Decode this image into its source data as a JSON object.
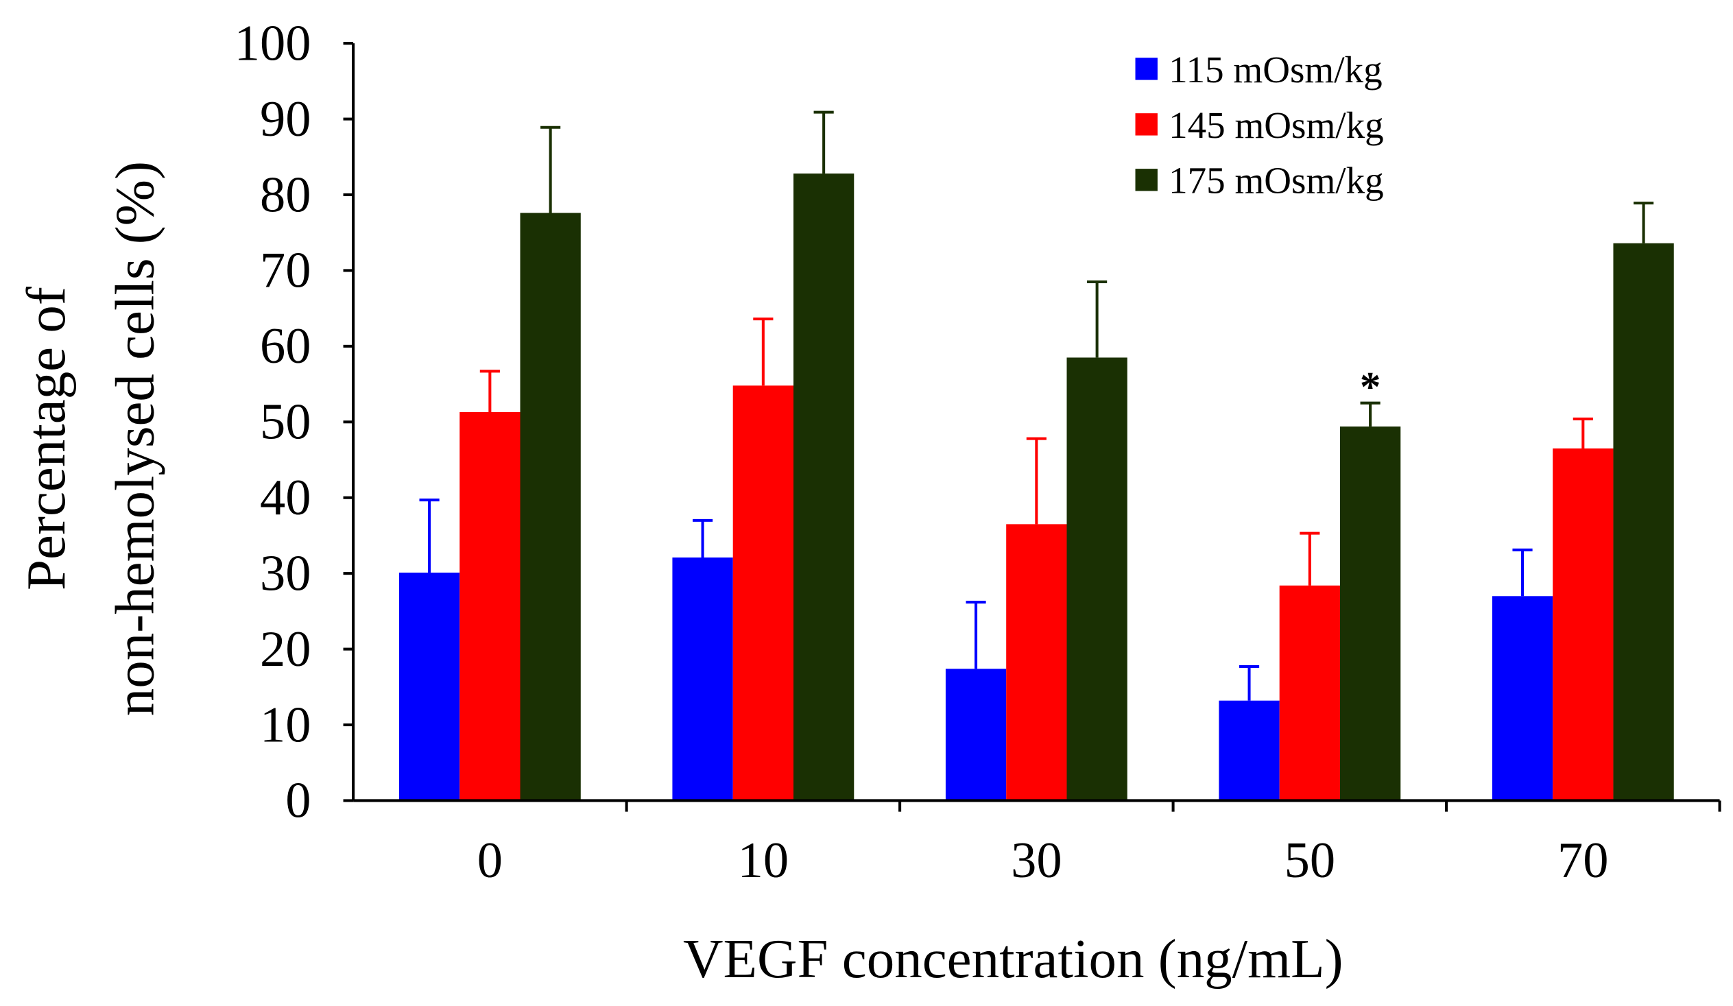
{
  "chart_data": {
    "type": "bar",
    "title": "",
    "xlabel": "VEGF concentration (ng/mL)",
    "ylabel_lines": [
      "Percentage of",
      "non-hemolysed cells (%)"
    ],
    "ylim": [
      0,
      100
    ],
    "yticks": [
      0,
      10,
      20,
      30,
      40,
      50,
      60,
      70,
      80,
      90,
      100
    ],
    "categories": [
      "0",
      "10",
      "30",
      "50",
      "70"
    ],
    "legend_position": "top-right",
    "series": [
      {
        "name": "115 mOsm/kg",
        "color": "#0000ff",
        "values": [
          30.1,
          32.1,
          17.4,
          13.2,
          27.0
        ],
        "error": [
          9.6,
          4.9,
          8.8,
          4.5,
          6.1
        ]
      },
      {
        "name": "145 mOsm/kg",
        "color": "#ff0000",
        "values": [
          51.3,
          54.8,
          36.5,
          28.4,
          46.5
        ],
        "error": [
          5.4,
          8.8,
          11.3,
          6.9,
          3.9
        ]
      },
      {
        "name": "175 mOsm/kg",
        "color": "#1a3003",
        "values": [
          77.6,
          82.8,
          58.5,
          49.4,
          73.6
        ],
        "error": [
          11.3,
          8.1,
          10.0,
          3.1,
          5.3
        ]
      }
    ],
    "annotations": [
      {
        "text": "*",
        "category": "50",
        "series": "175 mOsm/kg"
      }
    ]
  }
}
